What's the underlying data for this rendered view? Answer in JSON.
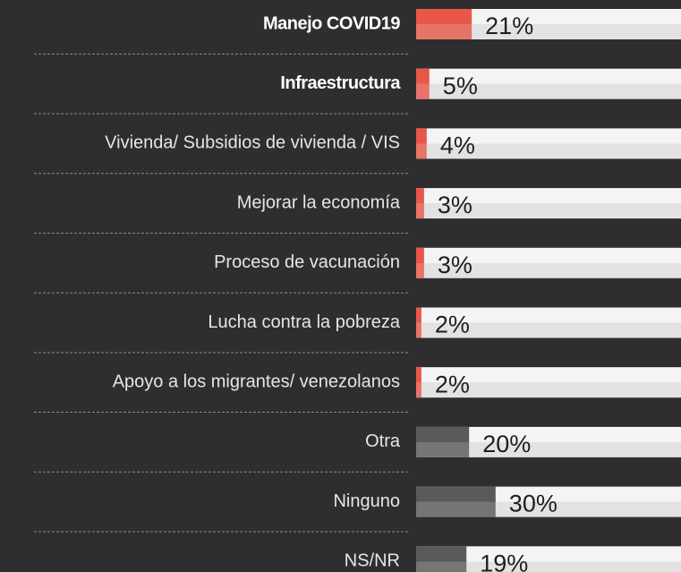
{
  "chart_data": {
    "type": "bar",
    "orientation": "horizontal",
    "categories": [
      "Manejo COVID19",
      "Infraestructura",
      "Vivienda/ Subsidios de vivienda / VIS",
      "Mejorar la economía",
      "Proceso de vacunación",
      "Lucha contra la pobreza",
      "Apoyo a los migrantes/ venezolanos",
      "Otra",
      "Ninguno",
      "NS/NR"
    ],
    "values": [
      21,
      5,
      4,
      3,
      3,
      2,
      2,
      20,
      30,
      19
    ],
    "value_labels": [
      "21%",
      "5%",
      "4%",
      "3%",
      "3%",
      "2%",
      "2%",
      "20%",
      "30%",
      "19%"
    ],
    "colors": [
      "#e8584a",
      "#e8584a",
      "#e8584a",
      "#e8584a",
      "#e8584a",
      "#e8584a",
      "#e8584a",
      "#5a5a5a",
      "#5a5a5a",
      "#5a5a5a"
    ],
    "xlim": [
      0,
      100
    ]
  }
}
